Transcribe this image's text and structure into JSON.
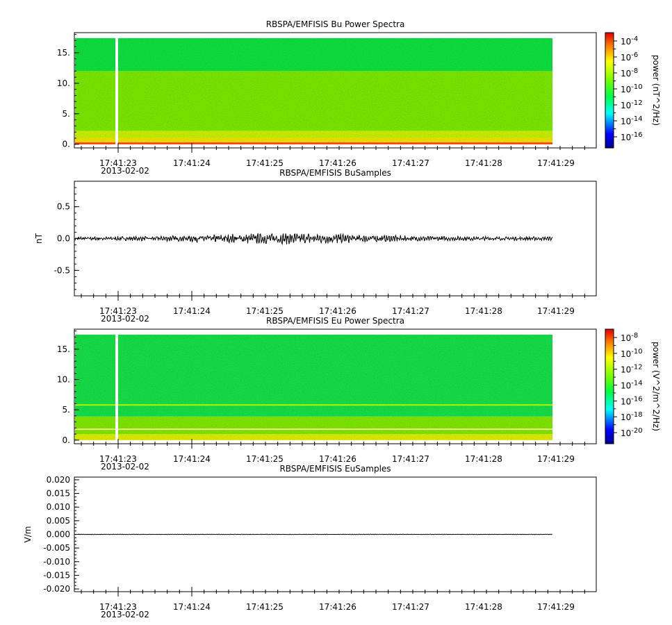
{
  "chart_data": [
    {
      "type": "heatmap",
      "title": "RBSPA/EMFISIS  Bu Power Spectra",
      "ylabel": "",
      "ylim": [
        -0.6,
        18.3
      ],
      "y_ticks": [
        0.0,
        5.0,
        10.0,
        15.0
      ],
      "y_tick_labels": [
        "0.",
        "5.",
        "10.",
        "15."
      ],
      "x_tick_labels": [
        "17:41:23",
        "17:41:24",
        "17:41:25",
        "17:41:26",
        "17:41:27",
        "17:41:28",
        "17:41:29"
      ],
      "date_label": "2013-02-02",
      "colorbar": {
        "label": "power (nT^2/Hz)",
        "tick_labels": [
          "10-4",
          "10-6",
          "10-8",
          "10-10",
          "10-12",
          "10-14",
          "10-16"
        ]
      },
      "bands": [
        {
          "y_range": [
            0.0,
            0.3
          ],
          "color": "#ff3a00"
        },
        {
          "y_range": [
            0.3,
            1.0
          ],
          "color": "#f4e000"
        },
        {
          "y_range": [
            1.0,
            2.2
          ],
          "color": "#c8f000"
        },
        {
          "y_range": [
            2.2,
            12.0
          ],
          "color": "#7be800"
        },
        {
          "y_range": [
            12.0,
            17.4
          ],
          "color": "#10e040"
        }
      ],
      "gap_time": "17:41:23"
    },
    {
      "type": "line",
      "title": "RBSPA/EMFISIS  BuSamples",
      "ylabel": "nT",
      "ylim": [
        -0.9,
        0.9
      ],
      "y_ticks": [
        -0.5,
        0.0,
        0.5
      ],
      "y_tick_labels": [
        "-0.5",
        "0.0",
        "0.5"
      ],
      "x_tick_labels": [
        "17:41:23",
        "17:41:24",
        "17:41:25",
        "17:41:26",
        "17:41:27",
        "17:41:28",
        "17:41:29"
      ],
      "date_label": "2013-02-02",
      "signal_amplitude": 0.08
    },
    {
      "type": "heatmap",
      "title": "RBSPA/EMFISIS  Eu Power Spectra",
      "ylabel": "",
      "ylim": [
        -0.6,
        18.3
      ],
      "y_ticks": [
        0.0,
        5.0,
        10.0,
        15.0
      ],
      "y_tick_labels": [
        "0.",
        "5.",
        "10.",
        "15."
      ],
      "x_tick_labels": [
        "17:41:23",
        "17:41:24",
        "17:41:25",
        "17:41:26",
        "17:41:27",
        "17:41:28",
        "17:41:29"
      ],
      "date_label": "2013-02-02",
      "colorbar": {
        "label": "power (V^2/m^2/Hz)",
        "tick_labels": [
          "10-8",
          "10-10",
          "10-12",
          "10-14",
          "10-16",
          "10-18",
          "10-20"
        ]
      },
      "bands": [
        {
          "y_range": [
            0.0,
            1.0
          ],
          "color": "#dcec00"
        },
        {
          "y_range": [
            1.0,
            3.9
          ],
          "color": "#7fe800"
        },
        {
          "y_range": [
            3.9,
            17.4
          ],
          "color": "#14df48"
        }
      ],
      "lines": [
        {
          "y": 1.8,
          "color": "#f0f080"
        },
        {
          "y": 5.8,
          "color": "#b0f000"
        }
      ],
      "gap_time": "17:41:23"
    },
    {
      "type": "line",
      "title": "RBSPA/EMFISIS  EuSamples",
      "ylabel": "V/m",
      "ylim": [
        -0.021,
        0.021
      ],
      "y_ticks": [
        -0.02,
        -0.015,
        -0.01,
        -0.005,
        0.0,
        0.005,
        0.01,
        0.015,
        0.02
      ],
      "y_tick_labels": [
        "-0.020",
        "-0.015",
        "-0.010",
        "-0.005",
        "0.000",
        "0.005",
        "0.010",
        "0.015",
        "0.020"
      ],
      "x_tick_labels": [
        "17:41:23",
        "17:41:24",
        "17:41:25",
        "17:41:26",
        "17:41:27",
        "17:41:28",
        "17:41:29"
      ],
      "date_label": "2013-02-02",
      "signal_amplitude": 0.0001
    }
  ]
}
